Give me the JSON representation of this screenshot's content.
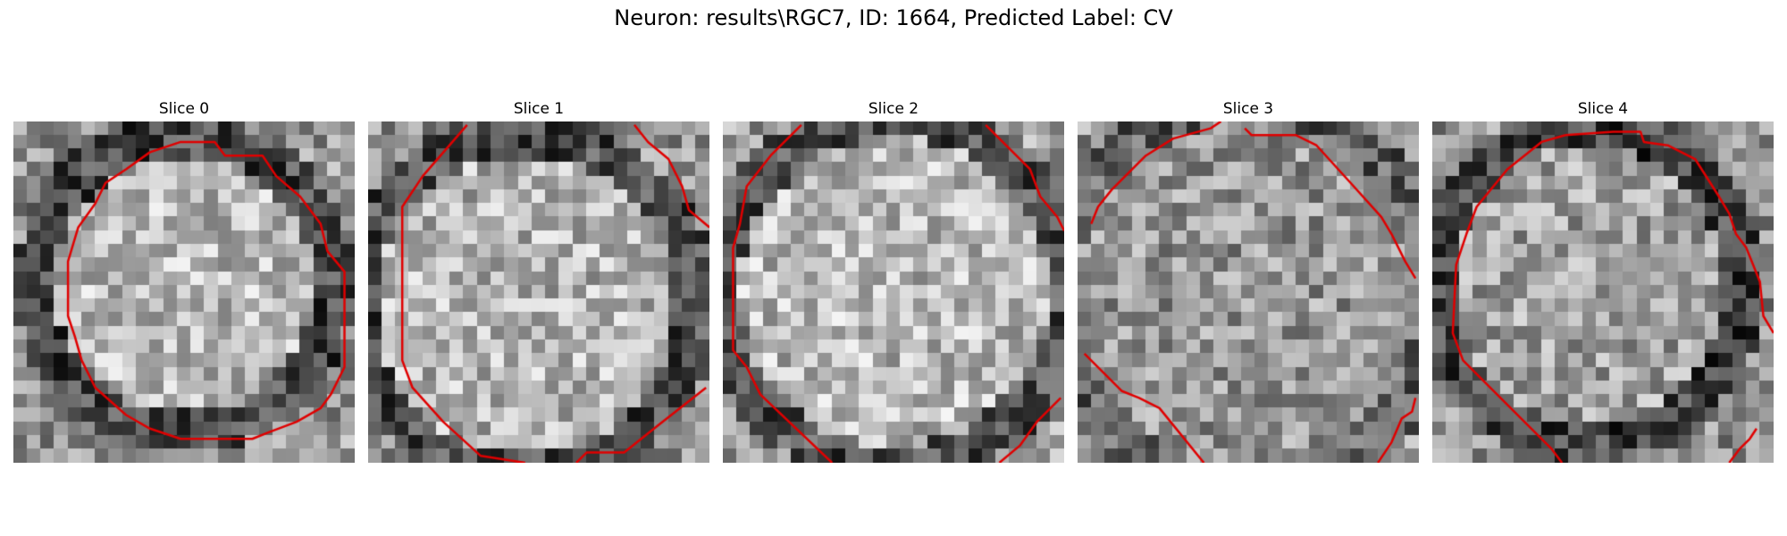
{
  "figure": {
    "title": "Neuron: results\\RGC7, ID: 1664, Predicted Label: CV"
  },
  "panels": [
    {
      "title": "Slice 0",
      "contour_color": "#e00000"
    },
    {
      "title": "Slice 1",
      "contour_color": "#e00000"
    },
    {
      "title": "Slice 2",
      "contour_color": "#e00000"
    },
    {
      "title": "Slice 3",
      "contour_color": "#e00000"
    },
    {
      "title": "Slice 4",
      "contour_color": "#e00000"
    }
  ]
}
